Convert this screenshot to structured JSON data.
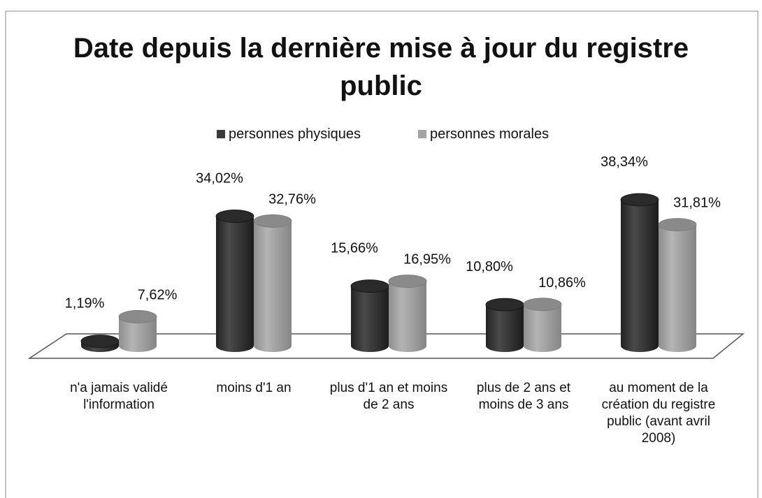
{
  "chart_data": {
    "type": "bar3d",
    "title": "Date depuis la dernière mise à jour du registre public",
    "categories": [
      "n'a jamais validé l'information",
      "moins d'1 an",
      "plus d'1 an et moins de 2 ans",
      "plus de 2 ans et moins de 3 ans",
      "au moment de la création du registre public (avant avril 2008)"
    ],
    "series": [
      {
        "name": "personnes physiques",
        "color": "#3a3a3a",
        "values": [
          1.19,
          34.02,
          15.66,
          10.8,
          38.34
        ],
        "value_labels": [
          "1,19%",
          "34,02%",
          "15,66%",
          "10,80%",
          "38,34%"
        ]
      },
      {
        "name": "personnes morales",
        "color": "#a3a3a3",
        "values": [
          7.62,
          32.76,
          16.95,
          10.86,
          31.81
        ],
        "value_labels": [
          "7,62%",
          "32,76%",
          "16,95%",
          "10,86%",
          "31,81%"
        ]
      }
    ],
    "legend": "top"
  }
}
